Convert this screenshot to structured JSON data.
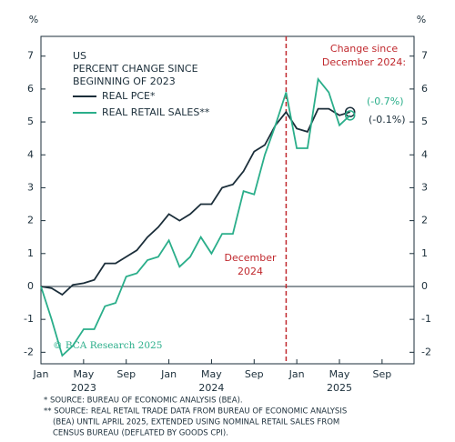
{
  "chart_data": {
    "type": "line",
    "title_lines": [
      "US",
      "PERCENT CHANGE SINCE",
      "BEGINNING OF 2023"
    ],
    "y_unit_left": "%",
    "y_unit_right": "%",
    "x": [
      "2023-01",
      "2023-02",
      "2023-03",
      "2023-04",
      "2023-05",
      "2023-06",
      "2023-07",
      "2023-08",
      "2023-09",
      "2023-10",
      "2023-11",
      "2023-12",
      "2024-01",
      "2024-02",
      "2024-03",
      "2024-04",
      "2024-05",
      "2024-06",
      "2024-07",
      "2024-08",
      "2024-09",
      "2024-10",
      "2024-11",
      "2024-12",
      "2025-01",
      "2025-02",
      "2025-03",
      "2025-04",
      "2025-05",
      "2025-06"
    ],
    "series": [
      {
        "name": "REAL PCE*",
        "color": "#1b2e3a",
        "values": [
          0,
          -0.05,
          -0.25,
          0.05,
          0.1,
          0.2,
          0.7,
          0.7,
          0.9,
          1.1,
          1.5,
          1.8,
          2.2,
          2.0,
          2.2,
          2.5,
          2.5,
          3.0,
          3.1,
          3.5,
          4.1,
          4.3,
          4.9,
          5.3,
          4.8,
          4.7,
          5.4,
          5.4,
          5.2,
          5.3
        ]
      },
      {
        "name": "REAL RETAIL SALES**",
        "color": "#2aae8a",
        "values": [
          0,
          -1.0,
          -2.1,
          -1.8,
          -1.3,
          -1.3,
          -0.6,
          -0.5,
          0.3,
          0.4,
          0.8,
          0.9,
          1.4,
          0.6,
          0.9,
          1.5,
          1.0,
          1.6,
          1.6,
          2.9,
          2.8,
          4.0,
          4.9,
          5.9,
          4.2,
          4.2,
          6.3,
          5.9,
          4.9,
          5.2
        ]
      }
    ],
    "xlim": [
      "2023-01",
      "2025-12"
    ],
    "xticks": [
      {
        "value": "2023-01",
        "label": "Jan"
      },
      {
        "value": "2023-05",
        "label": "May"
      },
      {
        "value": "2023-09",
        "label": "Sep"
      },
      {
        "value": "2024-01",
        "label": "Jan"
      },
      {
        "value": "2024-05",
        "label": "May"
      },
      {
        "value": "2024-09",
        "label": "Sep"
      },
      {
        "value": "2025-01",
        "label": "Jan"
      },
      {
        "value": "2025-05",
        "label": "May"
      },
      {
        "value": "2025-09",
        "label": "Sep"
      }
    ],
    "year_labels": [
      {
        "value": "2023-05",
        "label": "2023"
      },
      {
        "value": "2024-05",
        "label": "2024"
      },
      {
        "value": "2025-05",
        "label": "2025"
      }
    ],
    "ylim": [
      -2.35,
      7.6
    ],
    "yticks": [
      -2,
      -1,
      0,
      1,
      2,
      3,
      4,
      5,
      6,
      7
    ],
    "hline": 0,
    "marker_x": "2024-12",
    "marker_color": "#c0282d",
    "annotations": [
      "Change since",
      "December 2024:",
      "December",
      "2024",
      "(-0.7%)",
      "(-0.1%)"
    ],
    "watermark": "© BCA Research 2025",
    "footnotes": [
      "*  SOURCE: BUREAU OF ECONOMIC ANALYSIS (BEA).",
      "** SOURCE: REAL RETAIL TRADE DATA FROM BUREAU OF ECONOMIC ANALYSIS",
      "(BEA) UNTIL APRIL 2025, EXTENDED USING NOMINAL RETAIL SALES FROM",
      "CENSUS BUREAU (DEFLATED BY GOODS CPI)."
    ],
    "grid": false
  }
}
